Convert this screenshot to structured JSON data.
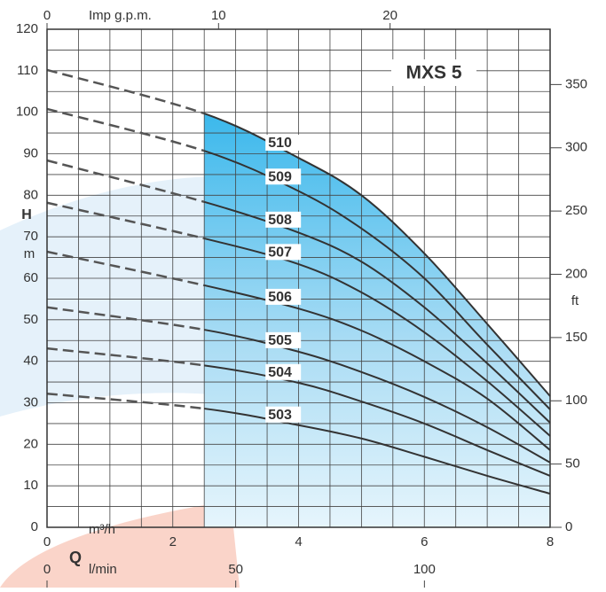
{
  "chart_data": {
    "type": "line",
    "title": "MXS 5",
    "x_label": "Q",
    "x_unit": "m³/h",
    "x2_unit": "l/min",
    "x3_unit": "Imp g.p.m.",
    "y_label": "H",
    "y_unit": "m",
    "y2_unit": "ft",
    "x": [
      0,
      2.5,
      4,
      5,
      6,
      7,
      8
    ],
    "xlim": [
      0,
      8
    ],
    "xticks": [
      0,
      2,
      4,
      6,
      8
    ],
    "x2lim": [
      0,
      133.3
    ],
    "x2ticks": [
      0,
      50,
      100
    ],
    "x3lim": [
      0,
      29.33
    ],
    "x3ticks": [
      0,
      10,
      20
    ],
    "ylim": [
      0,
      120
    ],
    "yticks": [
      0,
      10,
      20,
      30,
      40,
      50,
      60,
      70,
      80,
      90,
      100,
      110,
      120
    ],
    "y2lim": [
      0,
      393.7
    ],
    "y2ticks": [
      0,
      50,
      100,
      150,
      200,
      250,
      300,
      350
    ],
    "grid": true,
    "operating_range_x": [
      2.5,
      8
    ],
    "series": [
      {
        "name": "510",
        "color": "#333333",
        "values": [
          110.2,
          99.7,
          89,
          80,
          66,
          49,
          31.6
        ]
      },
      {
        "name": "509",
        "color": "#333333",
        "values": [
          100.8,
          90.7,
          81,
          72,
          60,
          44,
          28.4
        ]
      },
      {
        "name": "508",
        "color": "#333333",
        "values": [
          88.4,
          78.4,
          71,
          64,
          53,
          39.5,
          25.2
        ]
      },
      {
        "name": "507",
        "color": "#333333",
        "values": [
          78.2,
          69.6,
          63.4,
          56.6,
          47,
          35.2,
          22
        ]
      },
      {
        "name": "506",
        "color": "#333333",
        "values": [
          66.4,
          58.3,
          52.7,
          47.4,
          40,
          31,
          18.6
        ]
      },
      {
        "name": "505",
        "color": "#333333",
        "values": [
          53,
          47.6,
          42.3,
          37.4,
          31.4,
          24.1,
          15.6
        ]
      },
      {
        "name": "504",
        "color": "#333333",
        "values": [
          43.1,
          39,
          34.8,
          30.3,
          25,
          18.6,
          12.4
        ]
      },
      {
        "name": "503",
        "color": "#333333",
        "values": [
          32.2,
          28.6,
          24.6,
          21.4,
          17,
          12.4,
          8.1
        ]
      }
    ]
  }
}
